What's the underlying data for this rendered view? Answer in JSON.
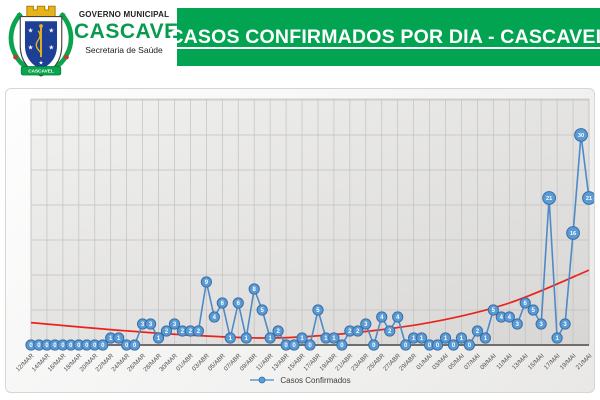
{
  "header": {
    "logo": {
      "governo": "GOVERNO MUNICIPAL",
      "city": "CASCAVEL",
      "secretaria": "Secretaria de Saúde",
      "ribbon": "CASCAVEL"
    },
    "banner": {
      "title": "CASOS CONFIRMADOS POR DIA - CASCAVEL",
      "bg_color": "#02A452",
      "text_color": "#FFFFFF"
    }
  },
  "chart_data": {
    "type": "line",
    "title": "CASOS CONFIRMADOS POR DIA - CASCAVEL",
    "legend_label": "Casos Confirmados",
    "legend_position": "bottom",
    "grid": true,
    "ylim": [
      0,
      35
    ],
    "y_grid_step": 5,
    "x_tick_interval": 2,
    "series_color": "#5B9BD5",
    "series_edge_color": "#3A6EA5",
    "trendline_color": "#E8241C",
    "axis_color": "#7a7a7a",
    "categories": [
      "12/MAR",
      "13/MAR",
      "14/MAR",
      "15/MAR",
      "16/MAR",
      "17/MAR",
      "18/MAR",
      "19/MAR",
      "20/MAR",
      "21/MAR",
      "22/MAR",
      "23/MAR",
      "24/MAR",
      "25/MAR",
      "26/MAR",
      "27/MAR",
      "28/MAR",
      "29/MAR",
      "30/MAR",
      "31/MAR",
      "01/ABR",
      "02/ABR",
      "03/ABR",
      "04/ABR",
      "05/ABR",
      "06/ABR",
      "07/ABR",
      "08/ABR",
      "09/ABR",
      "10/ABR",
      "11/ABR",
      "12/ABR",
      "13/ABR",
      "14/ABR",
      "15/ABR",
      "16/ABR",
      "17/ABR",
      "18/ABR",
      "19/ABR",
      "20/ABR",
      "21/ABR",
      "22/ABR",
      "23/ABR",
      "24/ABR",
      "25/ABR",
      "26/ABR",
      "27/ABR",
      "28/ABR",
      "29/ABR",
      "30/ABR",
      "01/MAI",
      "02/MAI",
      "03/MAI",
      "04/MAI",
      "05/MAI",
      "06/MAI",
      "07/MAI",
      "08/MAI",
      "09/MAI",
      "10/MAI",
      "11/MAI",
      "12/MAI",
      "13/MAI",
      "14/MAI",
      "15/MAI",
      "16/MAI",
      "17/MAI",
      "18/MAI",
      "19/MAI",
      "20/MAI",
      "21/MAI"
    ],
    "values": [
      0,
      0,
      0,
      0,
      0,
      0,
      0,
      0,
      0,
      0,
      1,
      1,
      0,
      0,
      3,
      3,
      1,
      2,
      3,
      2,
      2,
      2,
      9,
      4,
      6,
      1,
      6,
      1,
      8,
      5,
      1,
      2,
      0,
      0,
      1,
      0,
      5,
      1,
      1,
      0,
      2,
      2,
      3,
      0,
      4,
      2,
      4,
      0,
      1,
      1,
      0,
      0,
      1,
      0,
      1,
      0,
      2,
      1,
      5,
      4,
      4,
      3,
      6,
      5,
      3,
      21,
      1,
      3,
      16,
      30,
      21
    ],
    "trendline": {
      "type": "polynomial",
      "points_day_value": [
        [
          0,
          3.2
        ],
        [
          10,
          2.2
        ],
        [
          20,
          1.4
        ],
        [
          30,
          1.0
        ],
        [
          40,
          1.7
        ],
        [
          50,
          3.2
        ],
        [
          60,
          6.0
        ],
        [
          70,
          10.7
        ]
      ]
    }
  }
}
